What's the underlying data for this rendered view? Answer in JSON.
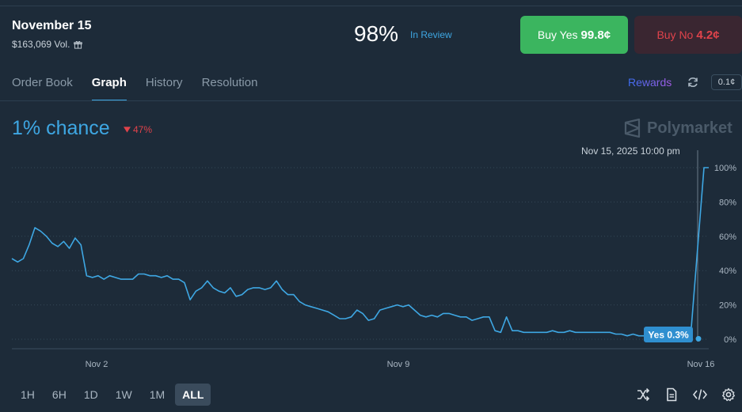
{
  "market": {
    "title": "November 15",
    "volume": "$163,069 Vol.",
    "probability": "98%",
    "status": "In Review"
  },
  "buttons": {
    "yes_label": "Buy Yes",
    "yes_price": "99.8¢",
    "no_label": "Buy No",
    "no_price": "4.2¢"
  },
  "tabs": [
    {
      "label": "Order Book",
      "active": false
    },
    {
      "label": "Graph",
      "active": true
    },
    {
      "label": "History",
      "active": false
    },
    {
      "label": "Resolution",
      "active": false
    }
  ],
  "toolbar": {
    "rewards_label": "Rewards",
    "tick_size": "0.1¢"
  },
  "summary": {
    "chance": "1% chance",
    "change": "47%"
  },
  "watermark": "Polymarket",
  "hover": {
    "date": "Nov 15, 2025 10:00 pm",
    "tooltip": "Yes 0.3%"
  },
  "timeframes": [
    {
      "label": "1H",
      "active": false
    },
    {
      "label": "6H",
      "active": false
    },
    {
      "label": "1D",
      "active": false
    },
    {
      "label": "1W",
      "active": false
    },
    {
      "label": "1M",
      "active": false
    },
    {
      "label": "ALL",
      "active": true
    }
  ],
  "icons": {
    "gift": "gift-icon",
    "refresh": "refresh-icon",
    "down_arrow": "triangle-down-icon",
    "tools": [
      "shuffle-icon",
      "document-icon",
      "code-icon",
      "gear-icon"
    ]
  },
  "colors": {
    "background": "#1d2b39",
    "accent": "#3ea7e3",
    "yes": "#3bb55f",
    "no": "#e0434b"
  },
  "chart_data": {
    "type": "line",
    "x_ticks": [
      "Nov 2",
      "Nov 9",
      "Nov 16"
    ],
    "y_ticks": [
      "0%",
      "20%",
      "40%",
      "60%",
      "80%",
      "100%"
    ],
    "ylim": [
      0,
      100
    ],
    "grid": true,
    "series": [
      {
        "values": [
          47,
          45,
          47,
          55,
          65,
          63,
          60,
          56,
          54,
          57,
          53,
          59,
          55,
          37,
          36,
          37,
          35,
          37,
          36,
          35,
          35,
          35,
          38,
          38,
          37,
          37,
          36,
          37,
          35,
          35,
          33,
          23,
          28,
          30,
          34,
          30,
          28,
          27,
          30,
          25,
          26,
          29,
          30,
          30,
          29,
          30,
          34,
          29,
          26,
          26,
          22,
          20,
          19,
          18,
          17,
          16,
          14,
          12,
          12,
          13,
          17,
          15,
          11,
          12,
          17,
          18,
          19,
          20,
          19,
          20,
          17,
          14,
          13,
          14,
          13,
          15,
          15,
          14,
          13,
          13,
          11,
          12,
          13,
          13,
          5,
          4,
          13,
          5,
          5,
          4,
          4,
          4,
          4,
          4,
          5,
          4,
          4,
          5,
          4,
          4,
          4,
          4,
          4,
          4,
          4,
          3,
          3,
          2,
          3,
          2,
          2,
          2,
          1,
          1,
          1,
          1,
          1,
          1,
          1,
          100,
          100
        ],
        "hover_value": 0.3
      }
    ]
  }
}
